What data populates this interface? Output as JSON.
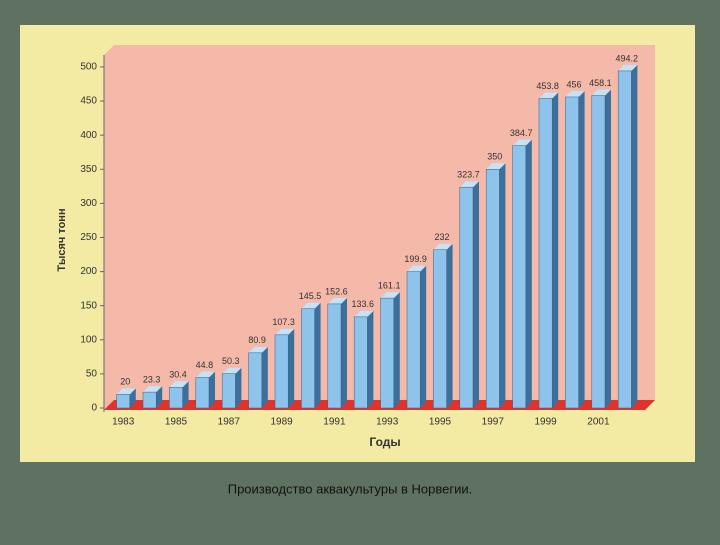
{
  "chart_data": {
    "type": "bar",
    "caption": "Производство аквакультуры в Норвегии.",
    "ylabel": "Тысяч тонн",
    "xlabel": "Годы",
    "categories": [
      "1983",
      null,
      "1985",
      null,
      "1987",
      null,
      "1989",
      null,
      "1991",
      null,
      "1993",
      null,
      "1995",
      null,
      "1997",
      null,
      "1999",
      null,
      "2001",
      null
    ],
    "values": [
      20,
      23.3,
      30.4,
      44.8,
      50.3,
      80.9,
      107.3,
      145.5,
      152.6,
      133.6,
      161.1,
      199.9,
      232,
      323.7,
      350,
      384.7,
      453.8,
      456,
      458.1,
      494.2
    ],
    "color": "#8ec3ec",
    "ylim": [
      0,
      530
    ],
    "yticks": [
      0,
      50,
      100,
      150,
      200,
      250,
      300,
      350,
      400,
      450,
      500
    ],
    "grid": false
  }
}
